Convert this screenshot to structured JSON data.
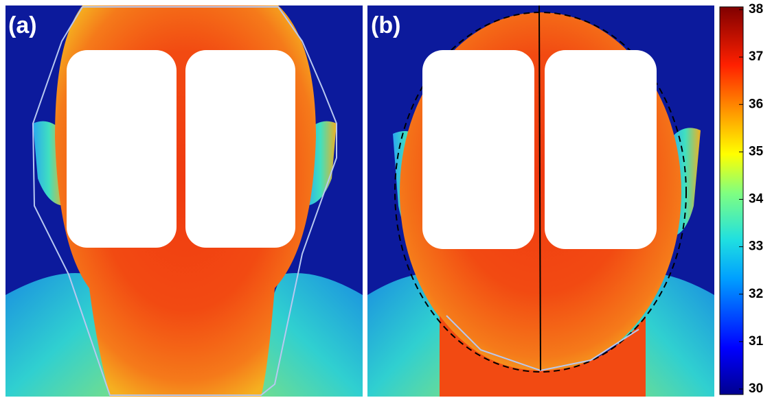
{
  "panels": [
    {
      "label": "(a)"
    },
    {
      "label": "(b)"
    }
  ],
  "colorbar": {
    "range": [
      30,
      38
    ],
    "ticks": [
      30,
      31,
      32,
      33,
      34,
      35,
      36,
      37,
      38
    ]
  }
}
